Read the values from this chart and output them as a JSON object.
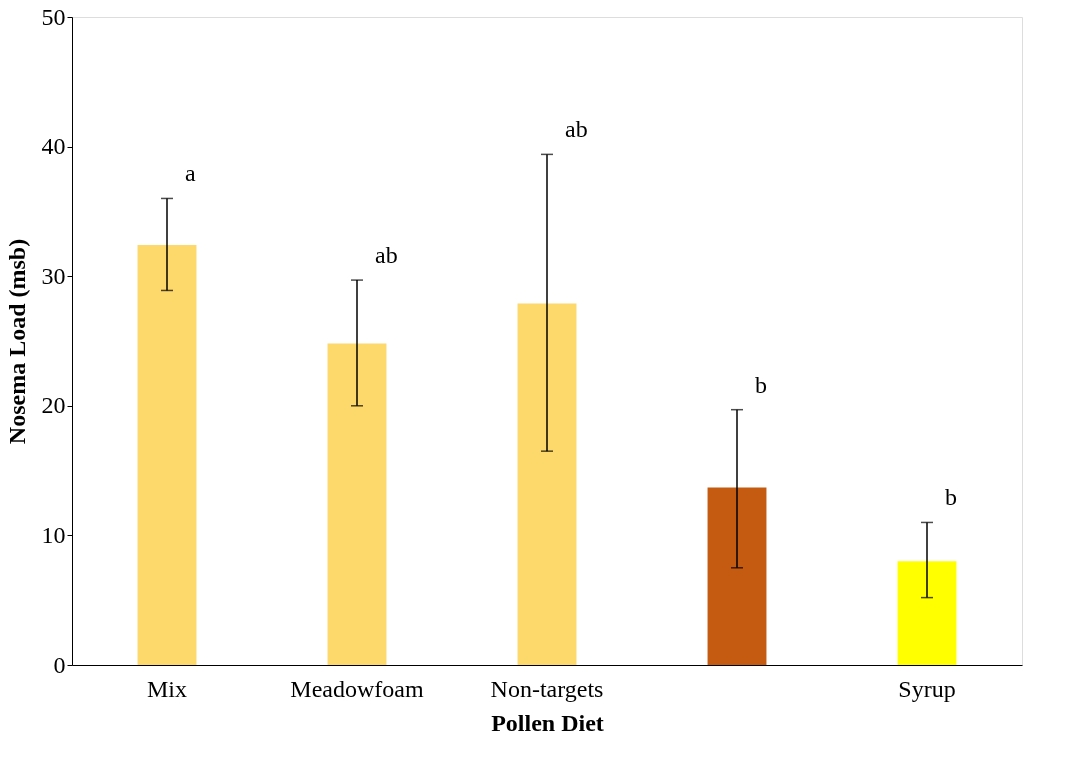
{
  "chart_data": {
    "type": "bar",
    "xlabel": "Pollen Diet",
    "ylabel": "Nosema Load (msb)",
    "categories": [
      "Mix",
      "Meadowfoam",
      "Non-targets",
      null,
      "Syrup"
    ],
    "values": [
      32.4,
      24.8,
      27.9,
      13.7,
      8.0
    ],
    "colors": [
      "#fdd86a",
      "#fdd86a",
      "#fdd86a",
      "#c55a11",
      "#ffff00"
    ],
    "errors": [
      [
        28.9,
        36.0
      ],
      [
        20.0,
        29.7
      ],
      [
        16.5,
        39.4
      ],
      [
        7.5,
        19.7
      ],
      [
        5.2,
        11.0
      ]
    ],
    "ylim": [
      0,
      50
    ],
    "yticks": [
      0,
      10,
      20,
      30,
      40,
      50
    ],
    "grid": false,
    "annotations": [
      {
        "text": "a",
        "x": "Mix",
        "y": 36.0
      },
      {
        "text": "ab",
        "x": "Meadowfoam",
        "y": 29.7
      },
      {
        "text": "ab",
        "x": "Non-targets",
        "y": 39.4
      },
      "b",
      {
        "text": "b",
        "x": "Syrup",
        "y": 11.0
      }
    ]
  }
}
